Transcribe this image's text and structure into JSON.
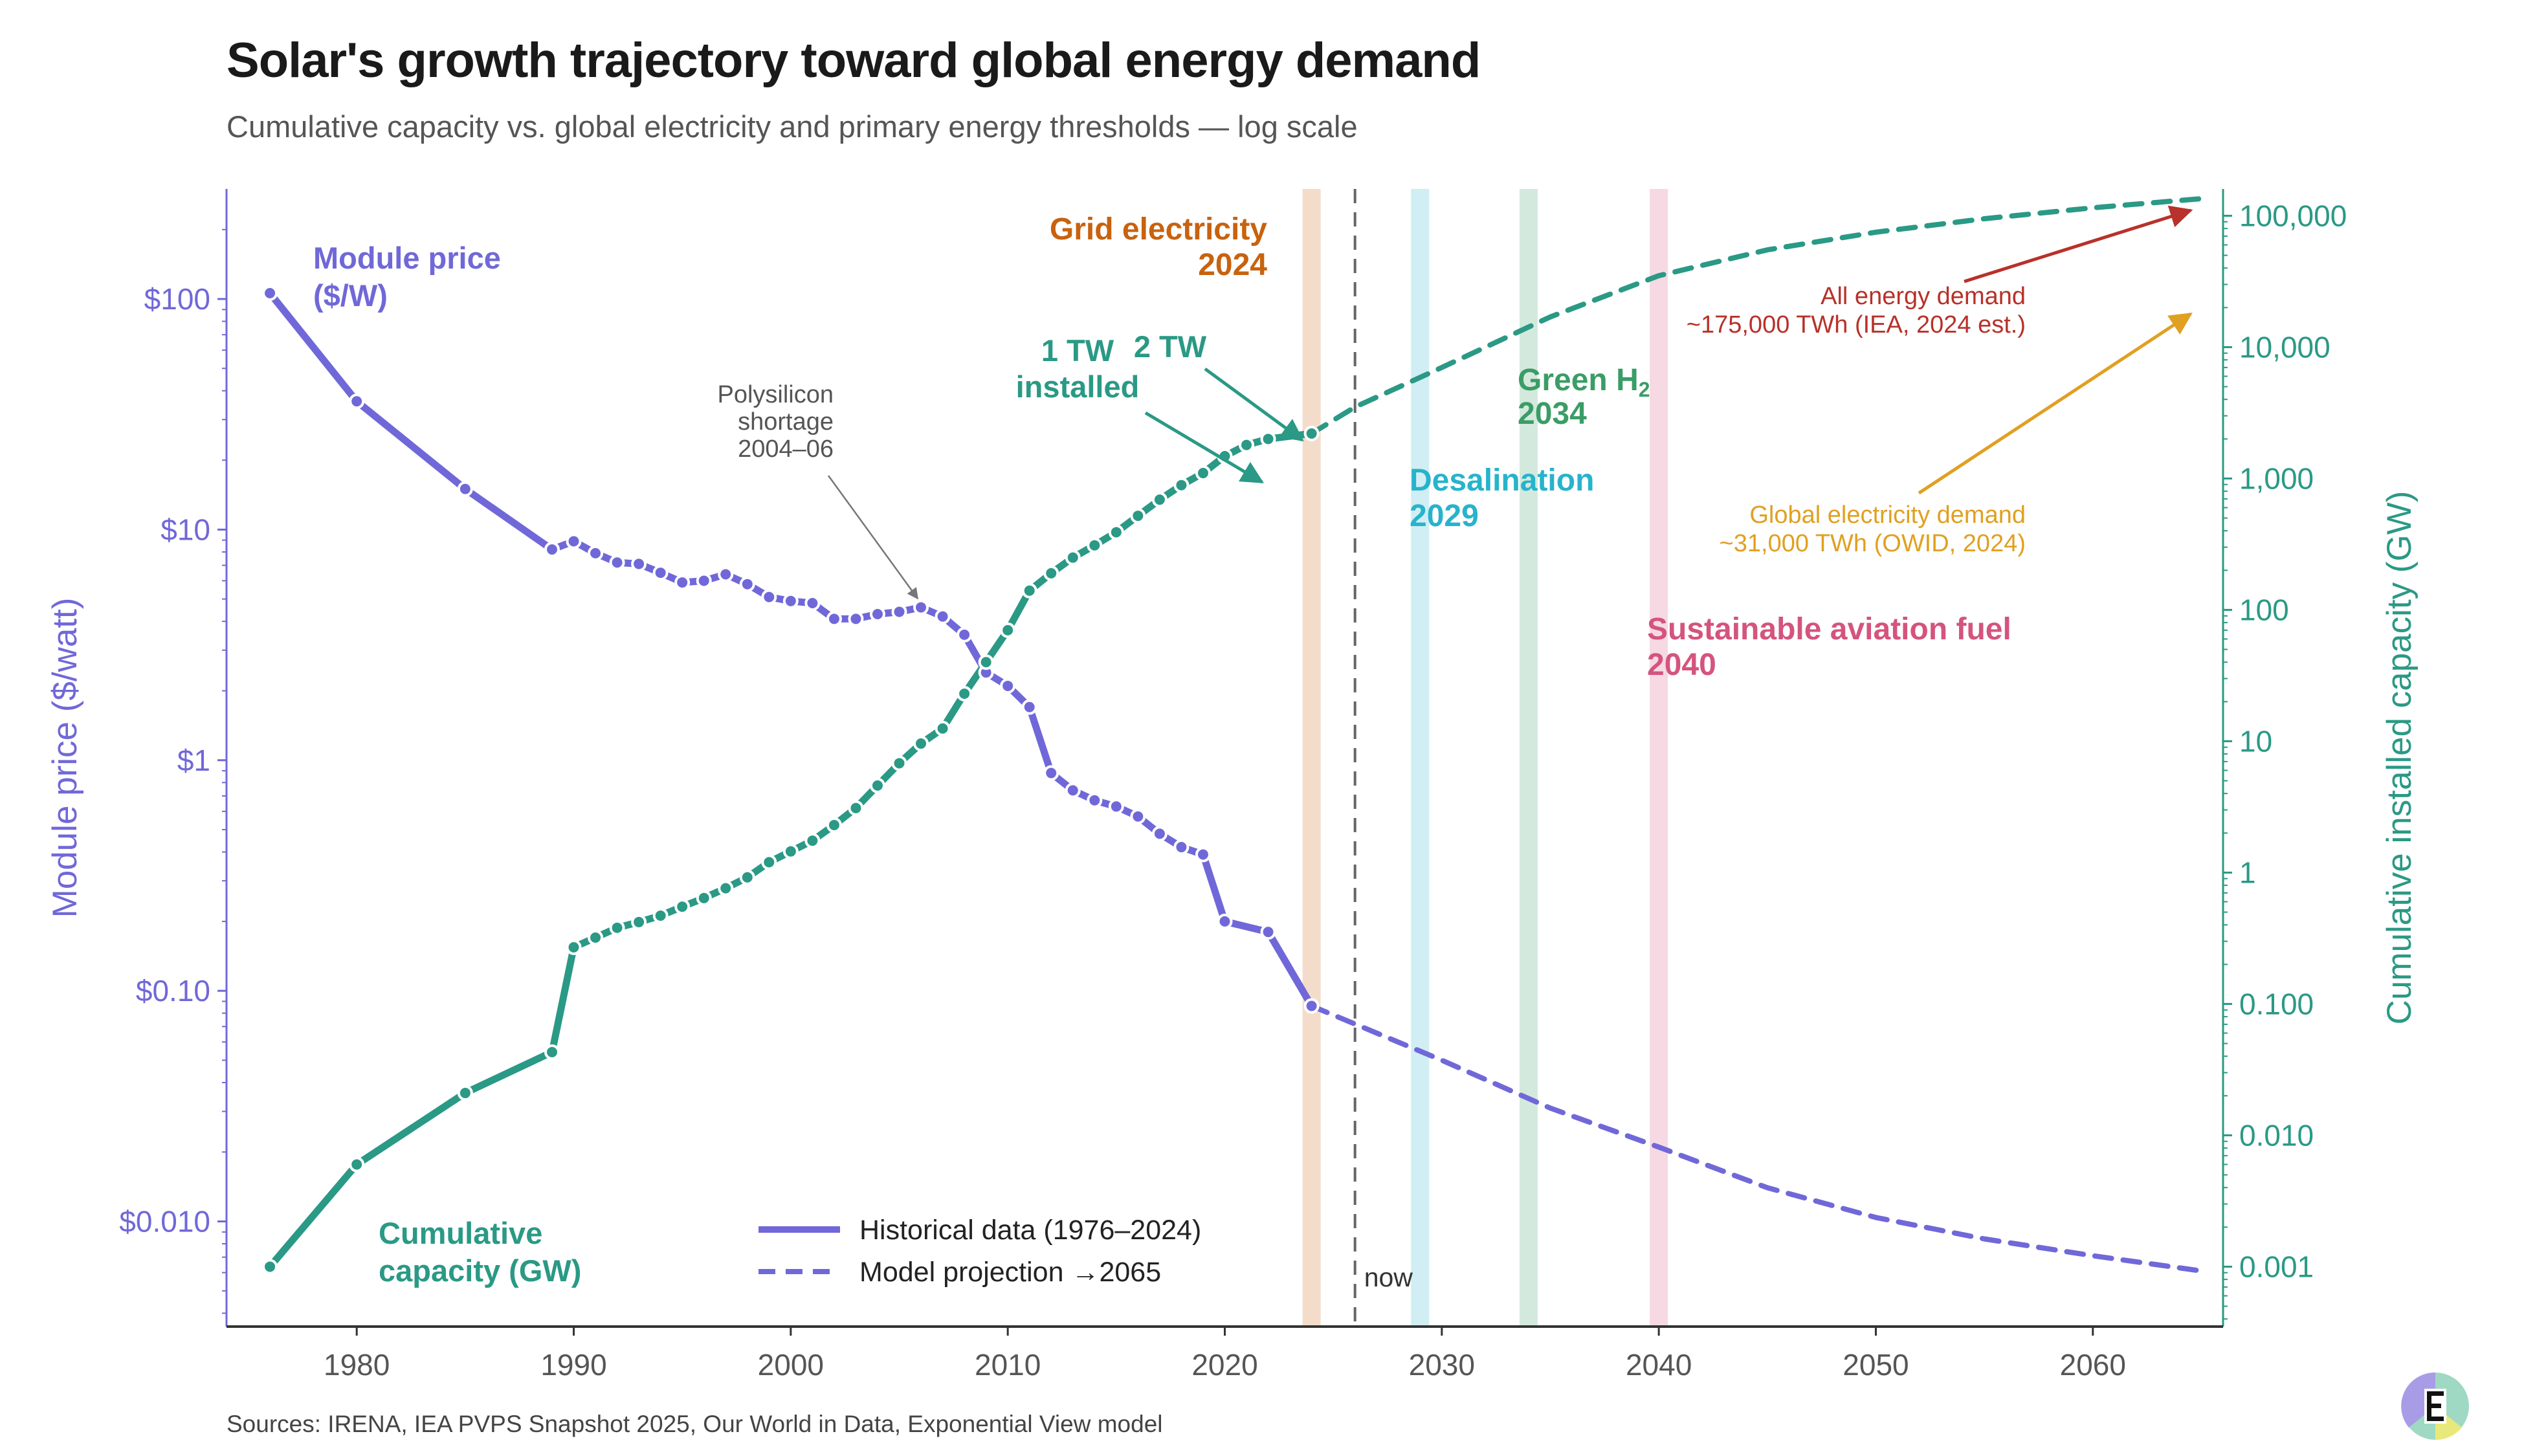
{
  "title": "Solar's growth trajectory toward global energy demand",
  "subtitle": "Cumulative capacity vs. global electricity and primary energy thresholds — log scale",
  "source": "Sources: IRENA, IEA PVPS Snapshot 2025, Our World in Data, Exponential View model",
  "colors": {
    "price": "#7068d8",
    "capacity": "#2a9985",
    "grid": "#c8620e",
    "desal": "#27b3cc",
    "h2": "#3a9d66",
    "saf": "#d4547e",
    "energy": "#b8312a",
    "electricity": "#e0a021",
    "now": "#666666"
  },
  "chart_data": {
    "type": "line",
    "x_axis": {
      "label": "",
      "range": [
        1974,
        2066
      ],
      "ticks": [
        1980,
        1990,
        2000,
        2010,
        2020,
        2030,
        2040,
        2050,
        2060
      ]
    },
    "y_left": {
      "label": "Module price ($/watt)",
      "scale": "log",
      "range": [
        0.0035,
        300
      ],
      "ticks": [
        {
          "v": 100,
          "label": "$100"
        },
        {
          "v": 10,
          "label": "$10"
        },
        {
          "v": 1,
          "label": "$1"
        },
        {
          "v": 0.1,
          "label": "$0.10"
        },
        {
          "v": 0.01,
          "label": "$0.010"
        }
      ]
    },
    "y_right": {
      "label": "Cumulative installed capacity (GW)",
      "scale": "log",
      "range": [
        0.00035,
        160000
      ],
      "ticks": [
        {
          "v": 100000,
          "label": "100,000"
        },
        {
          "v": 10000,
          "label": "10,000"
        },
        {
          "v": 1000,
          "label": "1,000"
        },
        {
          "v": 100,
          "label": "100"
        },
        {
          "v": 10,
          "label": "10"
        },
        {
          "v": 1,
          "label": "1"
        },
        {
          "v": 0.1,
          "label": "0.100"
        },
        {
          "v": 0.01,
          "label": "0.010"
        },
        {
          "v": 0.001,
          "label": "0.001"
        }
      ]
    },
    "series": [
      {
        "name": "Module price ($/W)",
        "axis": "left",
        "kind": "historical",
        "x": [
          1976,
          1980,
          1985,
          1989,
          1990,
          1991,
          1992,
          1993,
          1994,
          1995,
          1996,
          1997,
          1998,
          1999,
          2000,
          2001,
          2002,
          2003,
          2004,
          2005,
          2006,
          2007,
          2008,
          2009,
          2010,
          2011,
          2012,
          2013,
          2014,
          2015,
          2016,
          2017,
          2018,
          2019,
          2020,
          2022,
          2024
        ],
        "y": [
          106,
          36,
          15,
          8.2,
          8.9,
          7.9,
          7.2,
          7.1,
          6.5,
          5.9,
          6.0,
          6.4,
          5.8,
          5.1,
          4.9,
          4.8,
          4.1,
          4.1,
          4.3,
          4.4,
          4.6,
          4.2,
          3.5,
          2.4,
          2.1,
          1.7,
          0.88,
          0.74,
          0.67,
          0.63,
          0.57,
          0.48,
          0.42,
          0.39,
          0.2,
          0.18,
          0.086
        ]
      },
      {
        "name": "Module price ($/W)",
        "axis": "left",
        "kind": "projection",
        "x": [
          2024,
          2030,
          2035,
          2040,
          2045,
          2050,
          2055,
          2060,
          2065
        ],
        "y": [
          0.086,
          0.05,
          0.031,
          0.021,
          0.014,
          0.0104,
          0.0084,
          0.0071,
          0.0061
        ]
      },
      {
        "name": "Cumulative capacity (GW)",
        "axis": "right",
        "kind": "historical",
        "x": [
          1976,
          1980,
          1985,
          1989,
          1990,
          1991,
          1992,
          1993,
          1994,
          1995,
          1996,
          1997,
          1998,
          1999,
          2000,
          2001,
          2002,
          2003,
          2004,
          2005,
          2006,
          2007,
          2008,
          2009,
          2010,
          2011,
          2012,
          2013,
          2014,
          2015,
          2016,
          2017,
          2018,
          2019,
          2020,
          2021,
          2022,
          2024
        ],
        "y": [
          0.001,
          0.006,
          0.021,
          0.043,
          0.27,
          0.32,
          0.38,
          0.42,
          0.47,
          0.55,
          0.64,
          0.76,
          0.92,
          1.2,
          1.45,
          1.75,
          2.3,
          3.1,
          4.6,
          6.8,
          9.6,
          12.5,
          23,
          40,
          70,
          140,
          190,
          250,
          310,
          390,
          520,
          690,
          890,
          1100,
          1480,
          1800,
          2000,
          2200
        ]
      },
      {
        "name": "Cumulative capacity (GW)",
        "axis": "right",
        "kind": "projection",
        "x": [
          2024,
          2026,
          2030,
          2035,
          2040,
          2045,
          2050,
          2055,
          2060,
          2065
        ],
        "y": [
          2200,
          3500,
          7000,
          17000,
          35000,
          55000,
          75000,
          95000,
          115000,
          135000
        ]
      }
    ],
    "markers": [
      {
        "label": "Grid electricity",
        "year_label": "2024",
        "x": 2024,
        "color_key": "grid"
      },
      {
        "label": "Desalination",
        "year_label": "2029",
        "x": 2029,
        "color_key": "desal"
      },
      {
        "label": "Green H",
        "sub": "2",
        "year_label": "2034",
        "x": 2034,
        "color_key": "h2"
      },
      {
        "label": "Sustainable aviation fuel",
        "year_label": "2040",
        "x": 2040,
        "color_key": "saf"
      }
    ],
    "now": {
      "x": 2026,
      "label": "now"
    },
    "annotations": {
      "module_price": [
        "Module price",
        "($/W)"
      ],
      "cumulative": [
        "Cumulative",
        "capacity (GW)"
      ],
      "polysilicon": [
        "Polysilicon",
        "shortage",
        "2004–06"
      ],
      "one_tw": [
        "1 TW",
        "installed"
      ],
      "two_tw": "2 TW",
      "energy_demand": [
        "All energy demand",
        "~175,000 TWh (IEA, 2024 est.)"
      ],
      "electricity_demand": [
        "Global electricity demand",
        "~31,000 TWh (OWID, 2024)"
      ]
    },
    "legend": {
      "position": "bottom-center",
      "items": [
        {
          "label": "Historical data (1976–2024)",
          "style": "solid"
        },
        {
          "label": "Model projection →2065",
          "style": "dashed"
        }
      ]
    }
  }
}
